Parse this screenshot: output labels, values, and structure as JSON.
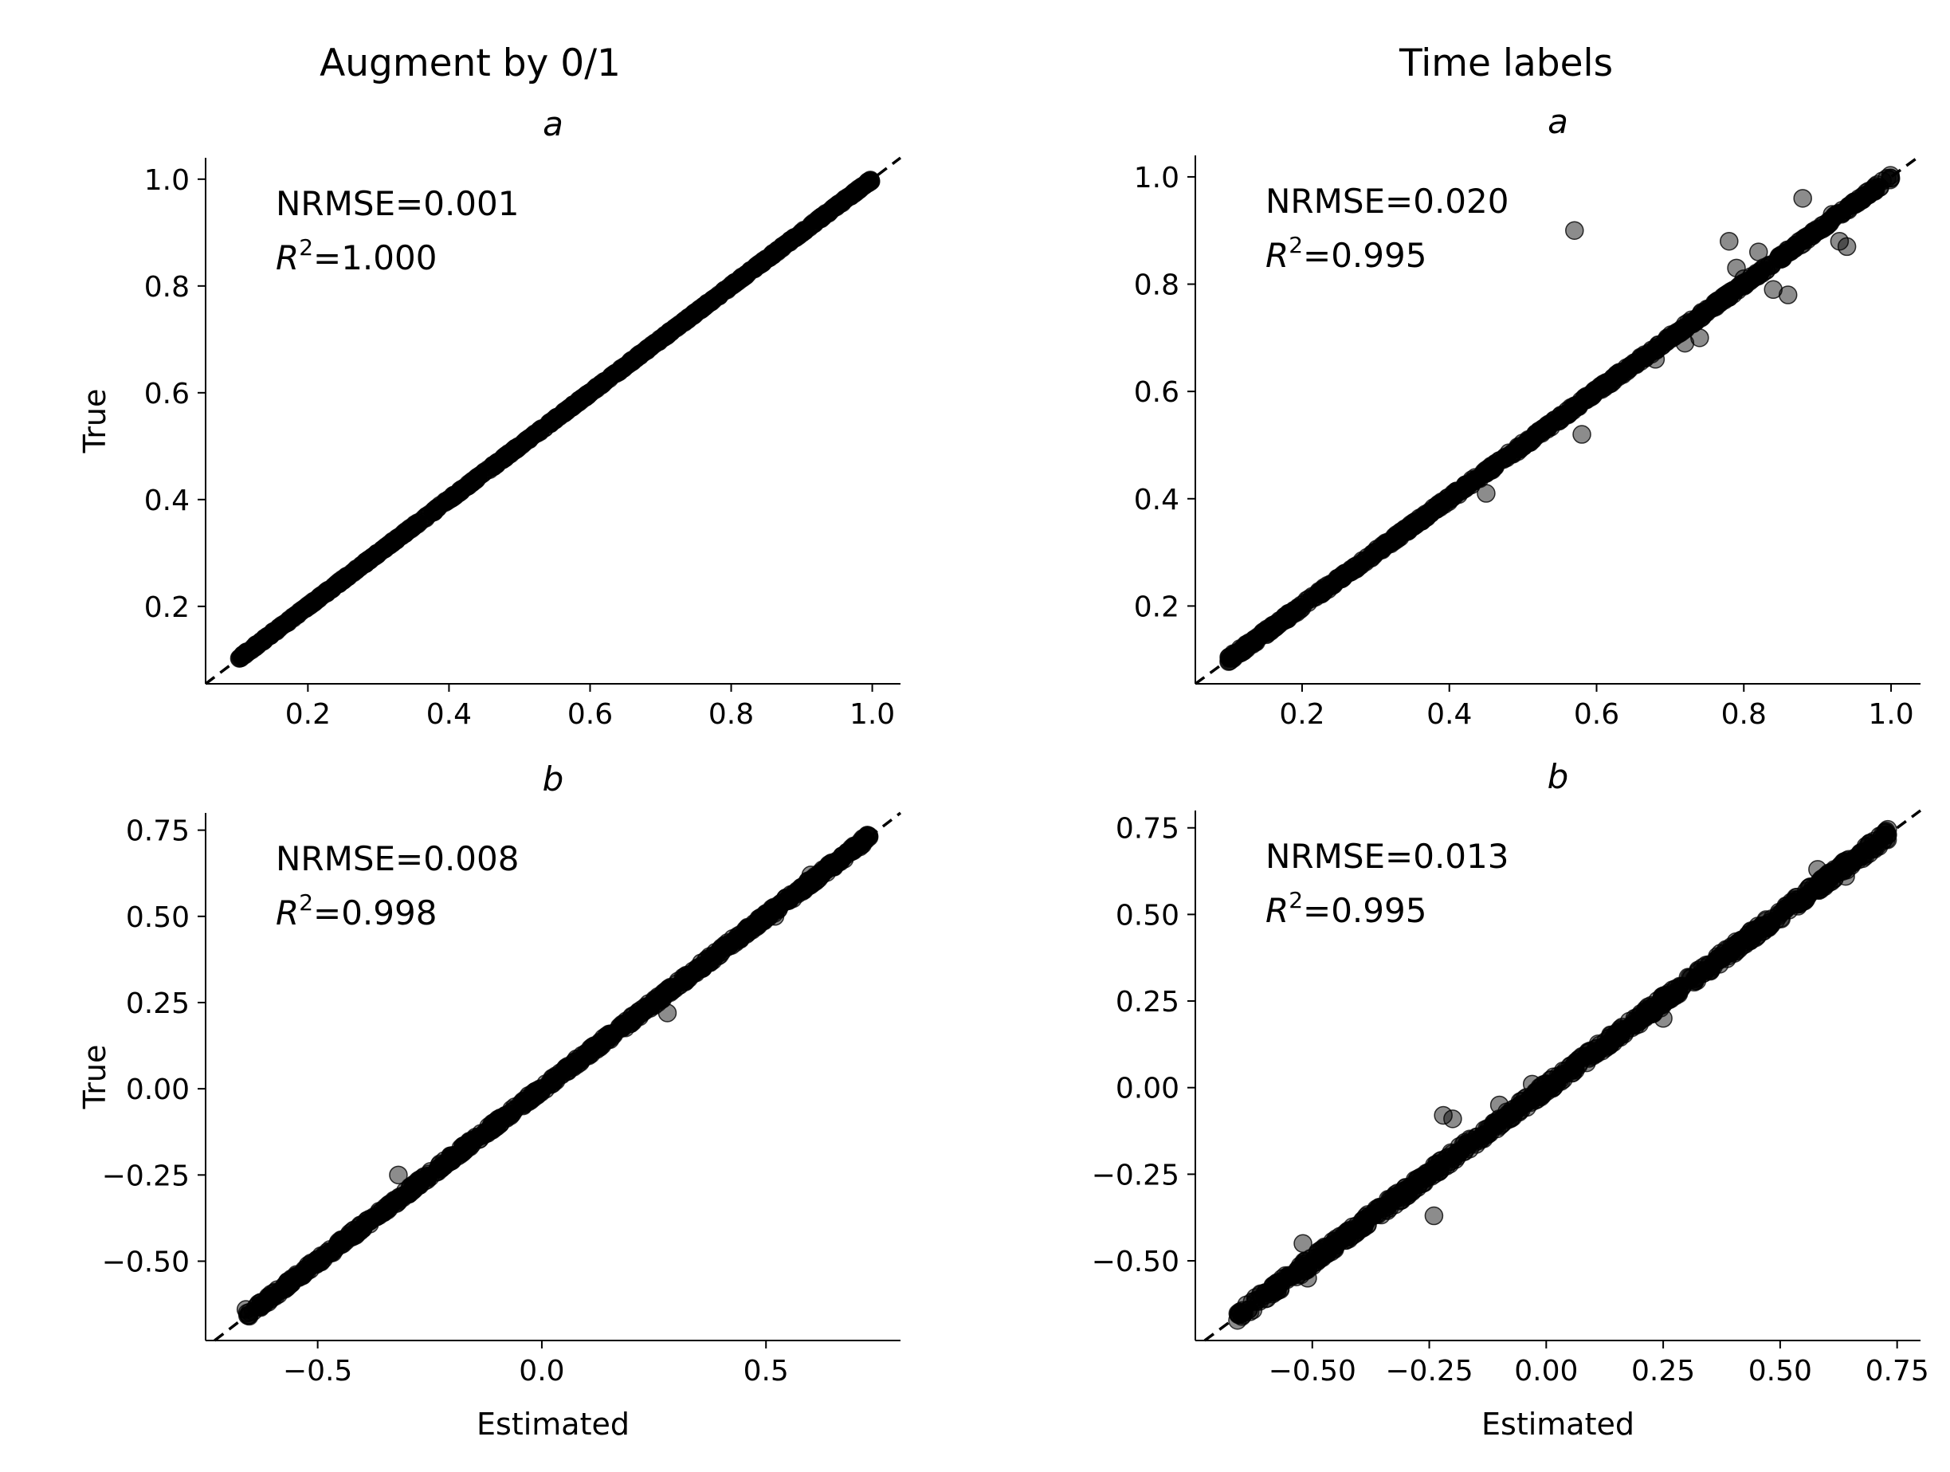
{
  "column_titles": [
    "Augment by 0/1",
    "Time labels"
  ],
  "chart_data": [
    {
      "type": "scatter",
      "column": "Augment by 0/1",
      "title": "a",
      "xlabel": "",
      "ylabel": "True",
      "xlim": [
        0.055,
        1.04
      ],
      "ylim": [
        0.055,
        1.04
      ],
      "xticks": [
        0.2,
        0.4,
        0.6,
        0.8,
        1.0
      ],
      "xtick_labels": [
        "0.2",
        "0.4",
        "0.6",
        "0.8",
        "1.0"
      ],
      "yticks": [
        0.2,
        0.4,
        0.6,
        0.8,
        1.0
      ],
      "ytick_labels": [
        "0.2",
        "0.4",
        "0.6",
        "0.8",
        "1.0"
      ],
      "annotation": {
        "nrmse": "NRMSE=0.001",
        "r2_prefix": "R",
        "r2_sup": "2",
        "r2_value": "=1.000"
      },
      "diagonal": "y = x (dashed)",
      "x_range": [
        0.1,
        1.0
      ],
      "spread": 0.002,
      "outliers": [],
      "grid": false
    },
    {
      "type": "scatter",
      "column": "Time labels",
      "title": "a",
      "xlabel": "",
      "ylabel": "",
      "xlim": [
        0.055,
        1.04
      ],
      "ylim": [
        0.055,
        1.04
      ],
      "xticks": [
        0.2,
        0.4,
        0.6,
        0.8,
        1.0
      ],
      "xtick_labels": [
        "0.2",
        "0.4",
        "0.6",
        "0.8",
        "1.0"
      ],
      "yticks": [
        0.2,
        0.4,
        0.6,
        0.8,
        1.0
      ],
      "ytick_labels": [
        "0.2",
        "0.4",
        "0.6",
        "0.8",
        "1.0"
      ],
      "annotation": {
        "nrmse": "NRMSE=0.020",
        "r2_prefix": "R",
        "r2_sup": "2",
        "r2_value": "=0.995"
      },
      "diagonal": "y = x (dashed)",
      "x_range": [
        0.1,
        1.0
      ],
      "spread": 0.005,
      "outliers": [
        [
          0.57,
          0.9
        ],
        [
          0.58,
          0.52
        ],
        [
          0.45,
          0.41
        ],
        [
          0.78,
          0.88
        ],
        [
          0.88,
          0.96
        ],
        [
          0.84,
          0.79
        ],
        [
          0.86,
          0.78
        ],
        [
          0.79,
          0.83
        ],
        [
          0.82,
          0.86
        ],
        [
          0.93,
          0.88
        ],
        [
          0.94,
          0.87
        ],
        [
          0.72,
          0.69
        ],
        [
          0.74,
          0.7
        ],
        [
          0.68,
          0.66
        ],
        [
          0.92,
          0.93
        ],
        [
          0.8,
          0.81
        ]
      ],
      "grid": false
    },
    {
      "type": "scatter",
      "column": "Augment by 0/1",
      "title": "b",
      "xlabel": "Estimated",
      "ylabel": "True",
      "xlim": [
        -0.75,
        0.8
      ],
      "ylim": [
        -0.73,
        0.8
      ],
      "xticks": [
        -0.5,
        0.0,
        0.5
      ],
      "xtick_labels": [
        "−0.5",
        "0.0",
        "0.5"
      ],
      "yticks": [
        -0.5,
        -0.25,
        0.0,
        0.25,
        0.5,
        0.75
      ],
      "ytick_labels": [
        "−0.50",
        "−0.25",
        "0.00",
        "0.25",
        "0.50",
        "0.75"
      ],
      "annotation": {
        "nrmse": "NRMSE=0.008",
        "r2_prefix": "R",
        "r2_sup": "2",
        "r2_value": "=0.998"
      },
      "diagonal": "y = x (dashed)",
      "x_range": [
        -0.66,
        0.73
      ],
      "spread": 0.01,
      "outliers": [
        [
          -0.32,
          -0.25
        ],
        [
          0.28,
          0.22
        ],
        [
          0.52,
          0.5
        ],
        [
          0.6,
          0.62
        ],
        [
          0.64,
          0.65
        ],
        [
          0.73,
          0.73
        ],
        [
          -0.66,
          -0.64
        ]
      ],
      "grid": false
    },
    {
      "type": "scatter",
      "column": "Time labels",
      "title": "b",
      "xlabel": "Estimated",
      "ylabel": "",
      "xlim": [
        -0.75,
        0.8
      ],
      "ylim": [
        -0.73,
        0.8
      ],
      "xticks": [
        -0.5,
        -0.25,
        0.0,
        0.25,
        0.5,
        0.75
      ],
      "xtick_labels": [
        "−0.50",
        "−0.25",
        "0.00",
        "0.25",
        "0.50",
        "0.75"
      ],
      "yticks": [
        -0.5,
        -0.25,
        0.0,
        0.25,
        0.5,
        0.75
      ],
      "ytick_labels": [
        "−0.50",
        "−0.25",
        "0.00",
        "0.25",
        "0.50",
        "0.75"
      ],
      "annotation": {
        "nrmse": "NRMSE=0.013",
        "r2_prefix": "R",
        "r2_sup": "2",
        "r2_value": "=0.995"
      },
      "diagonal": "y = x (dashed)",
      "x_range": [
        -0.66,
        0.73
      ],
      "spread": 0.016,
      "outliers": [
        [
          -0.24,
          -0.37
        ],
        [
          -0.22,
          -0.08
        ],
        [
          -0.2,
          -0.09
        ],
        [
          0.58,
          0.63
        ],
        [
          0.64,
          0.61
        ],
        [
          0.65,
          0.65
        ],
        [
          0.73,
          0.73
        ],
        [
          -0.51,
          -0.55
        ],
        [
          -0.52,
          -0.45
        ],
        [
          0.25,
          0.2
        ],
        [
          -0.1,
          -0.05
        ],
        [
          -0.03,
          0.01
        ]
      ],
      "grid": false
    }
  ]
}
